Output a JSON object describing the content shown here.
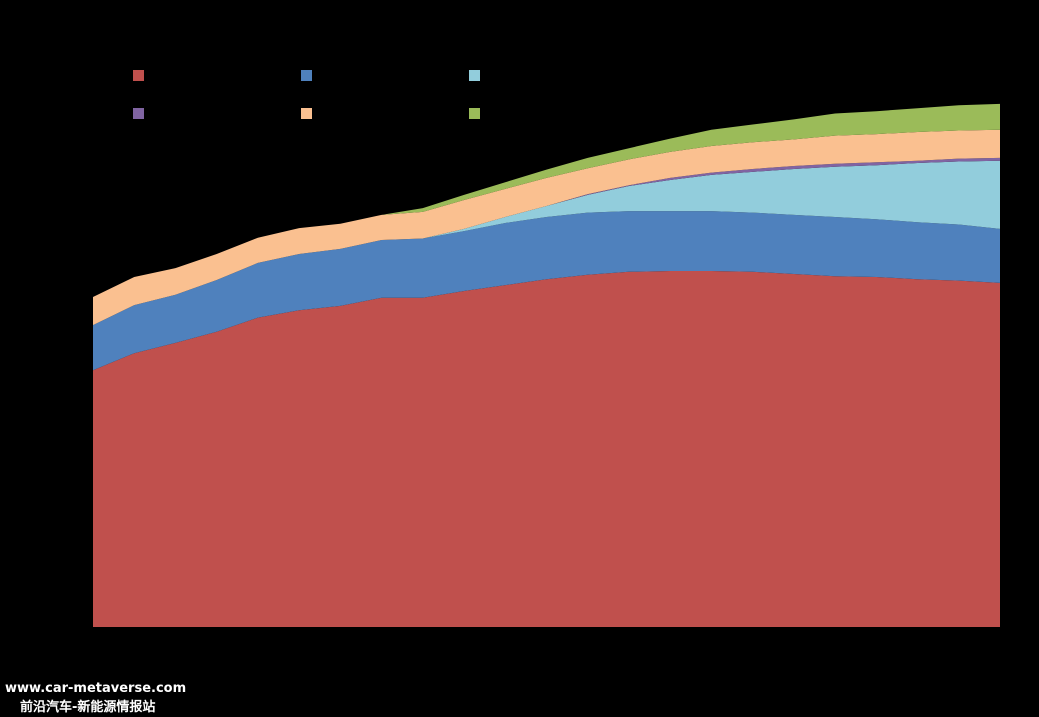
{
  "chart_data": {
    "type": "stacked-area",
    "categories": [
      null,
      null,
      null,
      null,
      null,
      null,
      null,
      null,
      null,
      null,
      null,
      null,
      null,
      null,
      null,
      null,
      null,
      null,
      null,
      null,
      null,
      null,
      null
    ],
    "ylim": [
      0,
      8
    ],
    "series": [
      {
        "color": "#c0504d",
        "values": [
          3.47,
          3.7,
          3.84,
          3.99,
          4.18,
          4.28,
          4.34,
          4.45,
          4.45,
          4.54,
          4.62,
          4.7,
          4.76,
          4.8,
          4.81,
          4.81,
          4.8,
          4.77,
          4.74,
          4.73,
          4.7,
          4.68,
          4.65
        ]
      },
      {
        "color": "#4f81bd",
        "values": [
          0.61,
          0.65,
          0.65,
          0.7,
          0.74,
          0.76,
          0.77,
          0.78,
          0.8,
          0.81,
          0.84,
          0.84,
          0.84,
          0.82,
          0.81,
          0.81,
          0.8,
          0.8,
          0.8,
          0.78,
          0.77,
          0.76,
          0.73
        ]
      },
      {
        "color": "#92cddc",
        "values": [
          0,
          0,
          0,
          0,
          0,
          0,
          0,
          0,
          0,
          0.03,
          0.08,
          0.15,
          0.24,
          0.34,
          0.42,
          0.49,
          0.55,
          0.62,
          0.68,
          0.73,
          0.8,
          0.85,
          0.92
        ]
      },
      {
        "color": "#8064a2",
        "values": [
          0,
          0,
          0,
          0,
          0,
          0,
          0,
          0,
          0,
          0,
          0,
          0,
          0.01,
          0.01,
          0.03,
          0.03,
          0.04,
          0.04,
          0.04,
          0.04,
          0.03,
          0.04,
          0.04
        ]
      },
      {
        "color": "#fac090",
        "values": [
          0.38,
          0.38,
          0.36,
          0.35,
          0.34,
          0.35,
          0.34,
          0.34,
          0.36,
          0.39,
          0.38,
          0.38,
          0.35,
          0.35,
          0.35,
          0.36,
          0.36,
          0.36,
          0.38,
          0.38,
          0.39,
          0.38,
          0.38
        ]
      },
      {
        "color": "#9bbb59",
        "values": [
          0,
          0,
          0,
          0,
          0,
          0,
          0,
          0,
          0.05,
          0.07,
          0.09,
          0.11,
          0.14,
          0.15,
          0.18,
          0.22,
          0.24,
          0.27,
          0.3,
          0.31,
          0.32,
          0.34,
          0.35
        ]
      }
    ]
  },
  "watermark": {
    "line1": "www.car-metaverse.com",
    "line2": "前沿汽车-新能源情报站"
  }
}
